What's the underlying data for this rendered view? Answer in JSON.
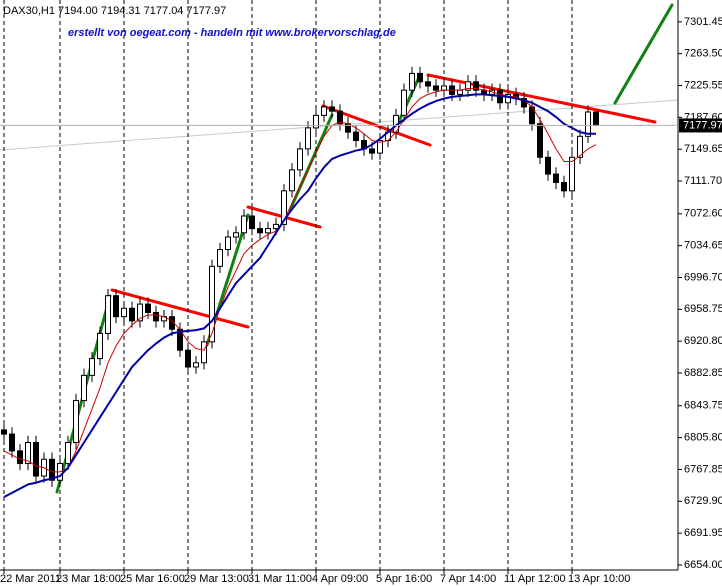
{
  "chart_data": {
    "type": "candlestick",
    "header": "DAX30,H1  7194.00 7194.31 7177.04 7177.97",
    "annotation": "erstellt von oegeat.com - handeln mit www.brokervorschlag.de",
    "categories": [
      "22 Mar 2011",
      null,
      null,
      null,
      null,
      null,
      null,
      "23 Mar 18:00",
      null,
      null,
      null,
      null,
      null,
      null,
      null,
      "25 Mar 16:00",
      null,
      null,
      null,
      null,
      null,
      null,
      null,
      "29 Mar 13:00",
      null,
      null,
      null,
      null,
      null,
      null,
      null,
      "31 Mar 11:00",
      null,
      null,
      null,
      null,
      null,
      null,
      null,
      "4 Apr 09:00",
      null,
      null,
      null,
      null,
      null,
      null,
      null,
      "5 Apr 16:00",
      null,
      null,
      null,
      null,
      null,
      null,
      null,
      "7 Apr 14:00",
      null,
      null,
      null,
      null,
      null,
      null,
      null,
      "11 Apr 12:00",
      null,
      null,
      null,
      null,
      null,
      null,
      null,
      "13 Apr 10:00",
      null,
      null,
      null
    ],
    "open": [
      6815,
      6810,
      6790,
      6775,
      6800,
      6760,
      6780,
      6755,
      6775,
      6800,
      6850,
      6880,
      6900,
      6930,
      6975,
      6950,
      6960,
      6945,
      6965,
      6955,
      6945,
      6950,
      6935,
      6910,
      6890,
      6895,
      6920,
      7010,
      7030,
      7045,
      7050,
      7070,
      7055,
      7050,
      7055,
      7060,
      7100,
      7125,
      7150,
      7175,
      7190,
      7200,
      7195,
      7180,
      7170,
      7160,
      7150,
      7145,
      7160,
      7170,
      7190,
      7220,
      7240,
      7230,
      7225,
      7220,
      7225,
      7215,
      7220,
      7230,
      7220,
      7215,
      7220,
      7205,
      7215,
      7210,
      7200,
      7180,
      7140,
      7120,
      7110,
      7100,
      7140,
      7165,
      7194
    ],
    "high": [
      6823,
      6818,
      6798,
      6808,
      6808,
      6788,
      6788,
      6783,
      6808,
      6858,
      6888,
      6908,
      6938,
      6983,
      6983,
      6968,
      6968,
      6973,
      6973,
      6963,
      6958,
      6958,
      6943,
      6918,
      6903,
      6928,
      7018,
      7038,
      7053,
      7058,
      7078,
      7078,
      7063,
      7063,
      7068,
      7108,
      7133,
      7158,
      7183,
      7198,
      7208,
      7208,
      7203,
      7188,
      7178,
      7168,
      7158,
      7168,
      7178,
      7198,
      7228,
      7248,
      7248,
      7238,
      7233,
      7233,
      7233,
      7228,
      7238,
      7238,
      7228,
      7228,
      7228,
      7223,
      7223,
      7218,
      7208,
      7188,
      7148,
      7128,
      7118,
      7148,
      7173,
      7202,
      7194.31
    ],
    "low": [
      6802,
      6782,
      6767,
      6767,
      6752,
      6752,
      6747,
      6747,
      6767,
      6792,
      6842,
      6872,
      6892,
      6922,
      6942,
      6942,
      6937,
      6937,
      6947,
      6937,
      6937,
      6927,
      6902,
      6882,
      6882,
      6887,
      6912,
      7002,
      7022,
      7037,
      7042,
      7047,
      7042,
      7042,
      7047,
      7052,
      7092,
      7117,
      7142,
      7167,
      7182,
      7187,
      7172,
      7162,
      7152,
      7142,
      7137,
      7137,
      7152,
      7162,
      7182,
      7212,
      7222,
      7217,
      7212,
      7212,
      7207,
      7207,
      7212,
      7212,
      7207,
      7207,
      7197,
      7197,
      7202,
      7192,
      7172,
      7132,
      7112,
      7102,
      7092,
      7092,
      7132,
      7157,
      7177.04
    ],
    "close": [
      6810,
      6790,
      6775,
      6800,
      6760,
      6780,
      6755,
      6775,
      6800,
      6850,
      6880,
      6900,
      6930,
      6975,
      6950,
      6960,
      6945,
      6965,
      6955,
      6945,
      6950,
      6935,
      6910,
      6890,
      6895,
      6920,
      7010,
      7030,
      7045,
      7050,
      7070,
      7055,
      7050,
      7055,
      7060,
      7100,
      7125,
      7150,
      7175,
      7190,
      7200,
      7195,
      7180,
      7170,
      7160,
      7150,
      7145,
      7160,
      7170,
      7190,
      7220,
      7240,
      7230,
      7225,
      7220,
      7225,
      7215,
      7220,
      7230,
      7220,
      7215,
      7220,
      7205,
      7215,
      7210,
      7200,
      7180,
      7140,
      7120,
      7110,
      7100,
      7140,
      7165,
      7194,
      7177.97
    ],
    "up_color": "#ffffff",
    "down_color": "#000000",
    "indicators": [
      {
        "color": "#d00000",
        "values": [
          6790,
          6785,
          6780,
          6778,
          6772,
          6770,
          6765,
          6765,
          6770,
          6790,
          6815,
          6840,
          6865,
          6895,
          6915,
          6930,
          6940,
          6948,
          6952,
          6952,
          6950,
          6945,
          6935,
          6920,
          6912,
          6910,
          6930,
          6960,
          6985,
          7005,
          7025,
          7035,
          7042,
          7048,
          7052,
          7065,
          7085,
          7105,
          7125,
          7145,
          7165,
          7178,
          7182,
          7180,
          7175,
          7168,
          7160,
          7158,
          7160,
          7170,
          7185,
          7200,
          7210,
          7215,
          7218,
          7220,
          7220,
          7220,
          7222,
          7222,
          7220,
          7218,
          7215,
          7213,
          7212,
          7208,
          7200,
          7185,
          7168,
          7150,
          7135,
          7135,
          7142,
          7150,
          7155
        ]
      },
      {
        "color": "#0000a8",
        "values": [
          6735,
          6740,
          6745,
          6750,
          6752,
          6755,
          6757,
          6760,
          6770,
          6785,
          6800,
          6815,
          6830,
          6845,
          6860,
          6875,
          6890,
          6900,
          6910,
          6918,
          6925,
          6930,
          6932,
          6933,
          6934,
          6936,
          6945,
          6960,
          6975,
          6990,
          7000,
          7010,
          7020,
          7035,
          7050,
          7065,
          7078,
          7090,
          7100,
          7115,
          7128,
          7138,
          7142,
          7145,
          7148,
          7150,
          7155,
          7162,
          7170,
          7178,
          7185,
          7192,
          7198,
          7203,
          7207,
          7210,
          7212,
          7213,
          7214,
          7215,
          7215,
          7214,
          7213,
          7212,
          7210,
          7208,
          7205,
          7200,
          7195,
          7188,
          7180,
          7175,
          7170,
          7168,
          7168
        ]
      }
    ],
    "ylim": [
      6648,
      7327.5
    ],
    "yticks": [
      7301.45,
      {
        "value": 7263.5,
        "label": "7263.50"
      },
      7225.55,
      {
        "value": 7187.6,
        "label": "7187.60"
      },
      7149.65,
      {
        "value": 7111.7,
        "label": "7111.70"
      },
      {
        "value": 7072.6,
        "label": "7072.60"
      },
      7034.65,
      {
        "value": 6996.7,
        "label": "6996.70"
      },
      6958.75,
      {
        "value": 6920.8,
        "label": "6920.80"
      },
      6882.85,
      6843.75,
      {
        "value": 6805.8,
        "label": "6805.80"
      },
      6767.85,
      {
        "value": 6729.9,
        "label": "6729.90"
      },
      6691.95,
      {
        "value": 6654,
        "label": "6654.00"
      }
    ],
    "grid": true
  }
}
